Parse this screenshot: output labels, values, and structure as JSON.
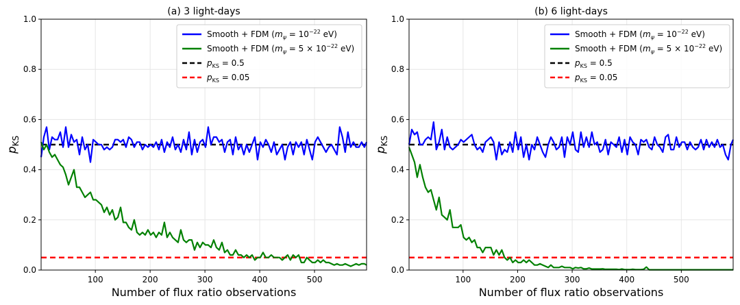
{
  "chart_data": [
    {
      "type": "line",
      "title": "(a) 3 light-days",
      "xlabel": "Number of flux ratio observations",
      "ylabel": "p_KS",
      "xlim": [
        1,
        595
      ],
      "ylim": [
        0.0,
        1.0
      ],
      "xticks": [
        100,
        200,
        300,
        400,
        500
      ],
      "yticks": [
        0.0,
        0.2,
        0.4,
        0.6,
        0.8,
        1.0
      ],
      "grid": true,
      "legend_position": "top-right",
      "x": [
        1,
        6,
        11,
        16,
        21,
        26,
        31,
        36,
        41,
        46,
        51,
        56,
        61,
        66,
        71,
        76,
        81,
        86,
        91,
        96,
        101,
        106,
        111,
        116,
        121,
        126,
        131,
        136,
        141,
        146,
        151,
        156,
        161,
        166,
        171,
        176,
        181,
        186,
        191,
        196,
        201,
        206,
        211,
        216,
        221,
        226,
        231,
        236,
        241,
        246,
        251,
        256,
        261,
        266,
        271,
        276,
        281,
        286,
        291,
        296,
        301,
        306,
        311,
        316,
        321,
        326,
        331,
        336,
        341,
        346,
        351,
        356,
        361,
        366,
        371,
        376,
        381,
        386,
        391,
        396,
        401,
        406,
        411,
        416,
        421,
        426,
        431,
        436,
        441,
        446,
        451,
        456,
        461,
        466,
        471,
        476,
        481,
        486,
        491,
        496,
        501,
        506,
        511,
        516,
        521,
        526,
        531,
        536,
        541,
        546,
        551,
        556,
        561,
        566,
        571,
        576,
        581,
        586,
        591,
        595
      ],
      "series": [
        {
          "name": "Smooth + FDM",
          "mass_label": "m_ψ = 10^-22 eV",
          "color": "#0000ff",
          "style": "solid",
          "values": [
            0.45,
            0.53,
            0.57,
            0.48,
            0.53,
            0.52,
            0.52,
            0.55,
            0.49,
            0.57,
            0.49,
            0.54,
            0.51,
            0.52,
            0.46,
            0.53,
            0.48,
            0.5,
            0.43,
            0.52,
            0.51,
            0.5,
            0.5,
            0.48,
            0.49,
            0.48,
            0.49,
            0.52,
            0.52,
            0.51,
            0.52,
            0.49,
            0.53,
            0.52,
            0.49,
            0.51,
            0.51,
            0.48,
            0.5,
            0.49,
            0.5,
            0.49,
            0.51,
            0.48,
            0.52,
            0.47,
            0.51,
            0.49,
            0.53,
            0.48,
            0.5,
            0.47,
            0.52,
            0.48,
            0.55,
            0.46,
            0.52,
            0.47,
            0.51,
            0.52,
            0.49,
            0.57,
            0.5,
            0.53,
            0.53,
            0.51,
            0.52,
            0.47,
            0.51,
            0.52,
            0.46,
            0.53,
            0.48,
            0.5,
            0.46,
            0.5,
            0.47,
            0.5,
            0.53,
            0.44,
            0.51,
            0.49,
            0.52,
            0.5,
            0.47,
            0.51,
            0.46,
            0.48,
            0.5,
            0.44,
            0.49,
            0.51,
            0.46,
            0.51,
            0.49,
            0.51,
            0.46,
            0.52,
            0.48,
            0.44,
            0.51,
            0.53,
            0.51,
            0.49,
            0.47,
            0.49,
            0.5,
            0.48,
            0.46,
            0.57,
            0.53,
            0.47,
            0.55,
            0.49,
            0.51,
            0.49,
            0.49,
            0.51,
            0.49,
            0.51
          ]
        },
        {
          "name": "Smooth + FDM",
          "mass_label": "m_ψ = 5 × 10^-22 eV",
          "color": "#008000",
          "style": "solid",
          "values": [
            0.51,
            0.48,
            0.5,
            0.47,
            0.45,
            0.46,
            0.44,
            0.42,
            0.41,
            0.38,
            0.34,
            0.37,
            0.4,
            0.33,
            0.33,
            0.31,
            0.29,
            0.3,
            0.31,
            0.28,
            0.28,
            0.27,
            0.26,
            0.23,
            0.25,
            0.22,
            0.24,
            0.2,
            0.21,
            0.25,
            0.19,
            0.19,
            0.17,
            0.16,
            0.2,
            0.15,
            0.14,
            0.15,
            0.14,
            0.16,
            0.14,
            0.15,
            0.13,
            0.15,
            0.14,
            0.19,
            0.13,
            0.15,
            0.13,
            0.12,
            0.11,
            0.16,
            0.12,
            0.11,
            0.12,
            0.12,
            0.08,
            0.11,
            0.09,
            0.11,
            0.1,
            0.1,
            0.09,
            0.12,
            0.09,
            0.08,
            0.11,
            0.07,
            0.08,
            0.06,
            0.06,
            0.08,
            0.06,
            0.06,
            0.05,
            0.06,
            0.05,
            0.06,
            0.04,
            0.05,
            0.05,
            0.07,
            0.05,
            0.05,
            0.06,
            0.05,
            0.05,
            0.05,
            0.04,
            0.05,
            0.06,
            0.04,
            0.06,
            0.05,
            0.06,
            0.03,
            0.03,
            0.05,
            0.04,
            0.03,
            0.03,
            0.04,
            0.03,
            0.04,
            0.03,
            0.03,
            0.025,
            0.02,
            0.025,
            0.02,
            0.02,
            0.025,
            0.02,
            0.015,
            0.02,
            0.025,
            0.02,
            0.025,
            0.025,
            0.02
          ]
        }
      ],
      "reference_lines": [
        {
          "label_sym": "p",
          "label_sub": "KS",
          "label_val": " = 0.5",
          "y": 0.5,
          "color": "#000000",
          "style": "dashed"
        },
        {
          "label_sym": "p",
          "label_sub": "KS",
          "label_val": " = 0.05",
          "y": 0.05,
          "color": "#ff0000",
          "style": "dashed"
        }
      ]
    },
    {
      "type": "line",
      "title": "(b) 6 light-days",
      "xlabel": "Number of flux ratio observations",
      "ylabel": "p_KS",
      "xlim": [
        1,
        595
      ],
      "ylim": [
        0.0,
        1.0
      ],
      "xticks": [
        100,
        200,
        300,
        400,
        500
      ],
      "yticks": [
        0.0,
        0.2,
        0.4,
        0.6,
        0.8,
        1.0
      ],
      "grid": true,
      "legend_position": "top-right",
      "x": [
        1,
        6,
        11,
        16,
        21,
        26,
        31,
        36,
        41,
        46,
        51,
        56,
        61,
        66,
        71,
        76,
        81,
        86,
        91,
        96,
        101,
        106,
        111,
        116,
        121,
        126,
        131,
        136,
        141,
        146,
        151,
        156,
        161,
        166,
        171,
        176,
        181,
        186,
        191,
        196,
        201,
        206,
        211,
        216,
        221,
        226,
        231,
        236,
        241,
        246,
        251,
        256,
        261,
        266,
        271,
        276,
        281,
        286,
        291,
        296,
        301,
        306,
        311,
        316,
        321,
        326,
        331,
        336,
        341,
        346,
        351,
        356,
        361,
        366,
        371,
        376,
        381,
        386,
        391,
        396,
        401,
        406,
        411,
        416,
        421,
        426,
        431,
        436,
        441,
        446,
        451,
        456,
        461,
        466,
        471,
        476,
        481,
        486,
        491,
        496,
        501,
        506,
        511,
        516,
        521,
        526,
        531,
        536,
        541,
        546,
        551,
        556,
        561,
        566,
        571,
        576,
        581,
        586,
        591,
        595
      ],
      "series": [
        {
          "name": "Smooth + FDM",
          "mass_label": "m_ψ = 10^-22 eV",
          "color": "#0000ff",
          "style": "solid",
          "values": [
            0.5,
            0.56,
            0.54,
            0.55,
            0.5,
            0.5,
            0.52,
            0.53,
            0.52,
            0.59,
            0.48,
            0.51,
            0.56,
            0.48,
            0.53,
            0.49,
            0.48,
            0.49,
            0.5,
            0.52,
            0.51,
            0.52,
            0.53,
            0.54,
            0.5,
            0.48,
            0.49,
            0.47,
            0.51,
            0.52,
            0.53,
            0.51,
            0.44,
            0.51,
            0.46,
            0.48,
            0.47,
            0.51,
            0.47,
            0.55,
            0.48,
            0.53,
            0.45,
            0.5,
            0.44,
            0.5,
            0.48,
            0.53,
            0.5,
            0.47,
            0.45,
            0.5,
            0.53,
            0.51,
            0.48,
            0.49,
            0.53,
            0.45,
            0.53,
            0.5,
            0.55,
            0.48,
            0.47,
            0.55,
            0.49,
            0.53,
            0.49,
            0.55,
            0.5,
            0.51,
            0.47,
            0.48,
            0.52,
            0.46,
            0.51,
            0.5,
            0.49,
            0.53,
            0.47,
            0.52,
            0.46,
            0.53,
            0.51,
            0.5,
            0.46,
            0.52,
            0.51,
            0.52,
            0.49,
            0.48,
            0.53,
            0.5,
            0.49,
            0.47,
            0.53,
            0.54,
            0.48,
            0.48,
            0.53,
            0.49,
            0.51,
            0.51,
            0.48,
            0.51,
            0.49,
            0.48,
            0.49,
            0.52,
            0.48,
            0.52,
            0.49,
            0.51,
            0.49,
            0.52,
            0.49,
            0.5,
            0.46,
            0.44,
            0.5,
            0.52
          ]
        },
        {
          "name": "Smooth + FDM",
          "mass_label": "m_ψ = 5 × 10^-22 eV",
          "color": "#008000",
          "style": "solid",
          "values": [
            0.49,
            0.46,
            0.43,
            0.37,
            0.42,
            0.37,
            0.33,
            0.31,
            0.32,
            0.28,
            0.24,
            0.29,
            0.22,
            0.21,
            0.2,
            0.24,
            0.17,
            0.17,
            0.17,
            0.18,
            0.13,
            0.12,
            0.13,
            0.11,
            0.12,
            0.09,
            0.09,
            0.07,
            0.09,
            0.09,
            0.09,
            0.06,
            0.08,
            0.06,
            0.08,
            0.05,
            0.04,
            0.05,
            0.03,
            0.04,
            0.03,
            0.03,
            0.04,
            0.03,
            0.04,
            0.03,
            0.02,
            0.02,
            0.025,
            0.02,
            0.015,
            0.01,
            0.02,
            0.01,
            0.01,
            0.01,
            0.015,
            0.01,
            0.01,
            0.01,
            0.005,
            0.01,
            0.008,
            0.01,
            0.005,
            0.005,
            0.008,
            0.004,
            0.004,
            0.004,
            0.004,
            0.005,
            0.003,
            0.003,
            0.003,
            0.003,
            0.003,
            0.002,
            0.004,
            0.002,
            0.002,
            0.002,
            0.003,
            0.002,
            0.002,
            0.002,
            0.003,
            0.012,
            0.001,
            0.001,
            0.001,
            0.001,
            0.001,
            0.001,
            0.001,
            0.001,
            0.001,
            0.001,
            0.001,
            0.001,
            0.001,
            0.001,
            0.001,
            0.001,
            0.001,
            0.001,
            0.001,
            0.001,
            0.001,
            0.001,
            0.001,
            0.001,
            0.001,
            0.001,
            0.001,
            0.001,
            0.001,
            0.001,
            0.001,
            0.001
          ]
        }
      ],
      "reference_lines": [
        {
          "label_sym": "p",
          "label_sub": "KS",
          "label_val": " = 0.5",
          "y": 0.5,
          "color": "#000000",
          "style": "dashed"
        },
        {
          "label_sym": "p",
          "label_sub": "KS",
          "label_val": " = 0.05",
          "y": 0.05,
          "color": "#ff0000",
          "style": "dashed"
        }
      ]
    }
  ]
}
